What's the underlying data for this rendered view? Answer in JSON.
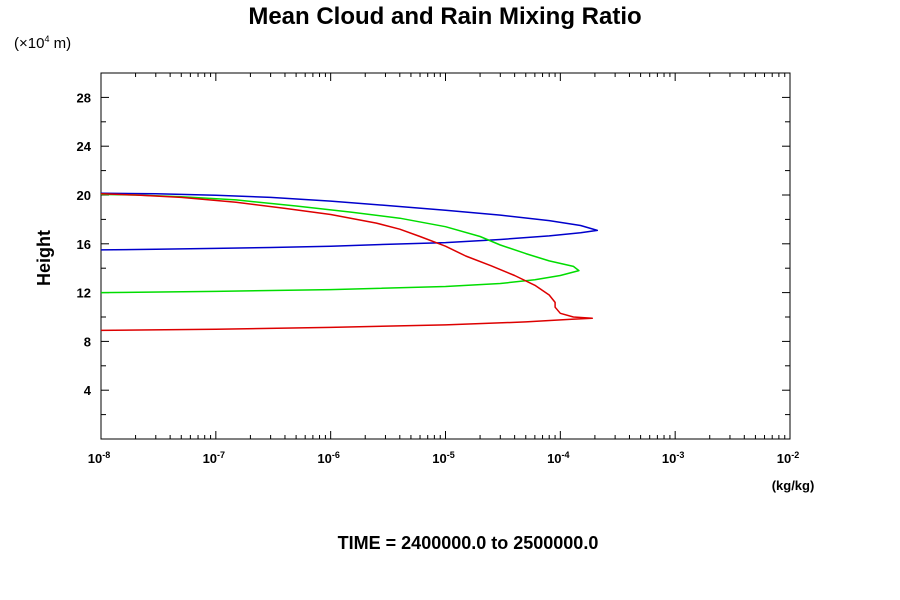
{
  "chart_data": {
    "type": "line",
    "title": "Mean Cloud and Rain Mixing Ratio",
    "ylabel": "Height",
    "y_scale_label": {
      "prefix": "(×10",
      "exp": "4",
      "suffix": " m)"
    },
    "xunits": "(kg/kg)",
    "footer": "TIME = 2400000.0 to 2500000.0",
    "xscale": "log",
    "xlim": [
      1e-08,
      0.01
    ],
    "ylim": [
      0,
      30
    ],
    "xticks": [
      {
        "base": "10",
        "exp": "-8",
        "value": 1e-08
      },
      {
        "base": "10",
        "exp": "-7",
        "value": 1e-07
      },
      {
        "base": "10",
        "exp": "-6",
        "value": 1e-06
      },
      {
        "base": "10",
        "exp": "-5",
        "value": 1e-05
      },
      {
        "base": "10",
        "exp": "-4",
        "value": 0.0001
      },
      {
        "base": "10",
        "exp": "-3",
        "value": 0.001
      },
      {
        "base": "10",
        "exp": "-2",
        "value": 0.01
      }
    ],
    "yticks": [
      4,
      8,
      12,
      16,
      20,
      24,
      28
    ],
    "series": [
      {
        "color": "#0000cc",
        "points": [
          [
            1e-08,
            15.5
          ],
          [
            3e-08,
            15.55
          ],
          [
            1e-07,
            15.62
          ],
          [
            3e-07,
            15.7
          ],
          [
            1e-06,
            15.8
          ],
          [
            3e-06,
            15.95
          ],
          [
            1e-05,
            16.1
          ],
          [
            3e-05,
            16.35
          ],
          [
            8e-05,
            16.65
          ],
          [
            0.00015,
            16.9
          ],
          [
            0.00021,
            17.1
          ],
          [
            0.00015,
            17.5
          ],
          [
            8e-05,
            17.9
          ],
          [
            3e-05,
            18.35
          ],
          [
            1e-05,
            18.75
          ],
          [
            3e-06,
            19.15
          ],
          [
            1e-06,
            19.5
          ],
          [
            3e-07,
            19.8
          ],
          [
            1e-07,
            19.98
          ],
          [
            3e-08,
            20.1
          ],
          [
            1e-08,
            20.15
          ]
        ]
      },
      {
        "color": "#00dd00",
        "points": [
          [
            1e-08,
            12.0
          ],
          [
            1e-07,
            12.1
          ],
          [
            1e-06,
            12.25
          ],
          [
            1e-05,
            12.5
          ],
          [
            3e-05,
            12.75
          ],
          [
            6e-05,
            13.05
          ],
          [
            0.0001,
            13.4
          ],
          [
            0.000145,
            13.8
          ],
          [
            0.00013,
            14.15
          ],
          [
            8e-05,
            14.6
          ],
          [
            5e-05,
            15.2
          ],
          [
            3e-05,
            15.9
          ],
          [
            2e-05,
            16.6
          ],
          [
            1e-05,
            17.4
          ],
          [
            4e-06,
            18.1
          ],
          [
            1.5e-06,
            18.6
          ],
          [
            5e-07,
            19.1
          ],
          [
            1.5e-07,
            19.6
          ],
          [
            5e-08,
            19.85
          ],
          [
            2e-08,
            20.0
          ],
          [
            1e-08,
            20.05
          ]
        ]
      },
      {
        "color": "#dd0000",
        "points": [
          [
            1e-08,
            8.9
          ],
          [
            1e-07,
            9.0
          ],
          [
            1e-06,
            9.15
          ],
          [
            1e-05,
            9.35
          ],
          [
            5e-05,
            9.6
          ],
          [
            0.00012,
            9.8
          ],
          [
            0.00019,
            9.9
          ],
          [
            0.00013,
            10.0
          ],
          [
            0.0001,
            10.3
          ],
          [
            9e-05,
            10.8
          ],
          [
            9e-05,
            11.2
          ],
          [
            8e-05,
            11.8
          ],
          [
            6e-05,
            12.6
          ],
          [
            4e-05,
            13.4
          ],
          [
            2.5e-05,
            14.2
          ],
          [
            1.5e-05,
            15.0
          ],
          [
            1e-05,
            15.8
          ],
          [
            6e-06,
            16.6
          ],
          [
            4e-06,
            17.2
          ],
          [
            2.5e-06,
            17.7
          ],
          [
            1e-06,
            18.4
          ],
          [
            4e-07,
            18.9
          ],
          [
            1.5e-07,
            19.4
          ],
          [
            5e-08,
            19.8
          ],
          [
            2e-08,
            20.0
          ],
          [
            1e-08,
            20.1
          ]
        ]
      }
    ]
  }
}
